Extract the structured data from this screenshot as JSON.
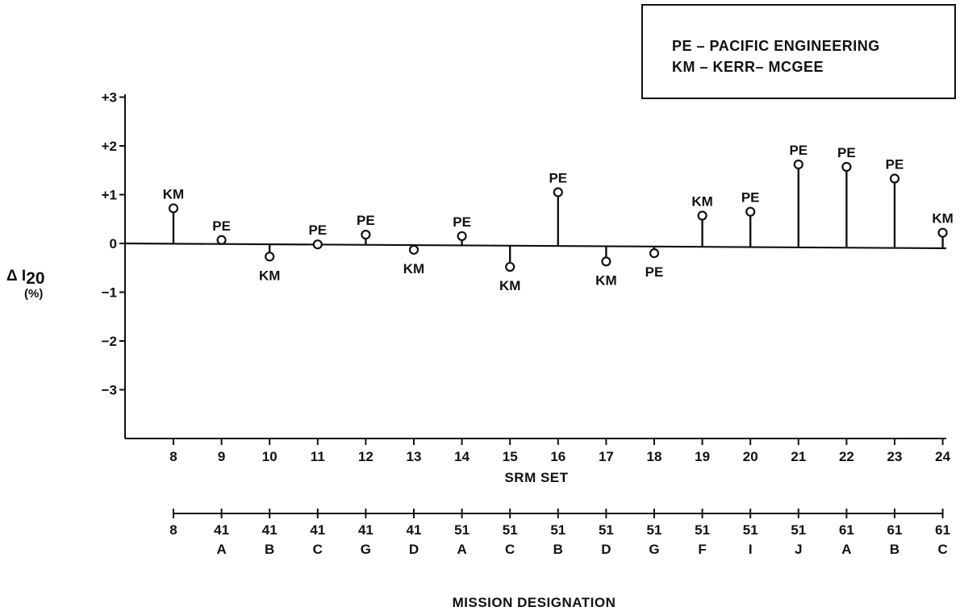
{
  "legend": {
    "line1": "PE – PACIFIC ENGINEERING",
    "line2": "KM – KERR– MCGEE"
  },
  "axis": {
    "ylabel_symbol": "Δ I",
    "ylabel_subscript": "20",
    "ylabel_unit": "(%)",
    "xlabel": "SRM SET",
    "x2label": "MISSION DESIGNATION"
  },
  "chart_data": {
    "type": "scatter",
    "style": "stem",
    "x": [
      8,
      9,
      10,
      11,
      12,
      13,
      14,
      15,
      16,
      17,
      18,
      19,
      20,
      21,
      22,
      23,
      24
    ],
    "y": [
      0.72,
      0.07,
      -0.27,
      -0.02,
      0.18,
      -0.13,
      0.15,
      -0.48,
      1.05,
      -0.37,
      -0.2,
      0.57,
      0.65,
      1.62,
      1.57,
      1.33,
      0.22
    ],
    "labels": [
      "KM",
      "PE",
      "KM",
      "PE",
      "PE",
      "KM",
      "PE",
      "KM",
      "PE",
      "KM",
      "PE",
      "KM",
      "PE",
      "PE",
      "PE",
      "PE",
      "KM"
    ],
    "label_position": [
      "above",
      "above",
      "below",
      "above",
      "above",
      "below",
      "above",
      "below",
      "above",
      "below",
      "below",
      "above",
      "above",
      "above",
      "above",
      "above",
      "above"
    ],
    "ylim": [
      -4,
      3
    ],
    "y_ticks": [
      {
        "value": 3,
        "label": "+3"
      },
      {
        "value": 2,
        "label": "+2"
      },
      {
        "value": 1,
        "label": "+1"
      },
      {
        "value": 0,
        "label": "0"
      },
      {
        "value": -1,
        "label": "−1"
      },
      {
        "value": -2,
        "label": "−2"
      },
      {
        "value": -3,
        "label": "−3"
      }
    ],
    "x_tick_labels": [
      "8",
      "9",
      "10",
      "11",
      "12",
      "13",
      "14",
      "15",
      "16",
      "17",
      "18",
      "19",
      "20",
      "21",
      "22",
      "23",
      "24"
    ],
    "mission_designation": [
      {
        "top": "8",
        "bottom": ""
      },
      {
        "top": "41",
        "bottom": "A"
      },
      {
        "top": "41",
        "bottom": "B"
      },
      {
        "top": "41",
        "bottom": "C"
      },
      {
        "top": "41",
        "bottom": "G"
      },
      {
        "top": "41",
        "bottom": "D"
      },
      {
        "top": "51",
        "bottom": "A"
      },
      {
        "top": "51",
        "bottom": "C"
      },
      {
        "top": "51",
        "bottom": "B"
      },
      {
        "top": "51",
        "bottom": "D"
      },
      {
        "top": "51",
        "bottom": "G"
      },
      {
        "top": "51",
        "bottom": "F"
      },
      {
        "top": "51",
        "bottom": "I"
      },
      {
        "top": "51",
        "bottom": "J"
      },
      {
        "top": "61",
        "bottom": "A"
      },
      {
        "top": "61",
        "bottom": "B"
      },
      {
        "top": "61",
        "bottom": "C"
      }
    ],
    "grid": false,
    "legend_position": "top-right"
  }
}
